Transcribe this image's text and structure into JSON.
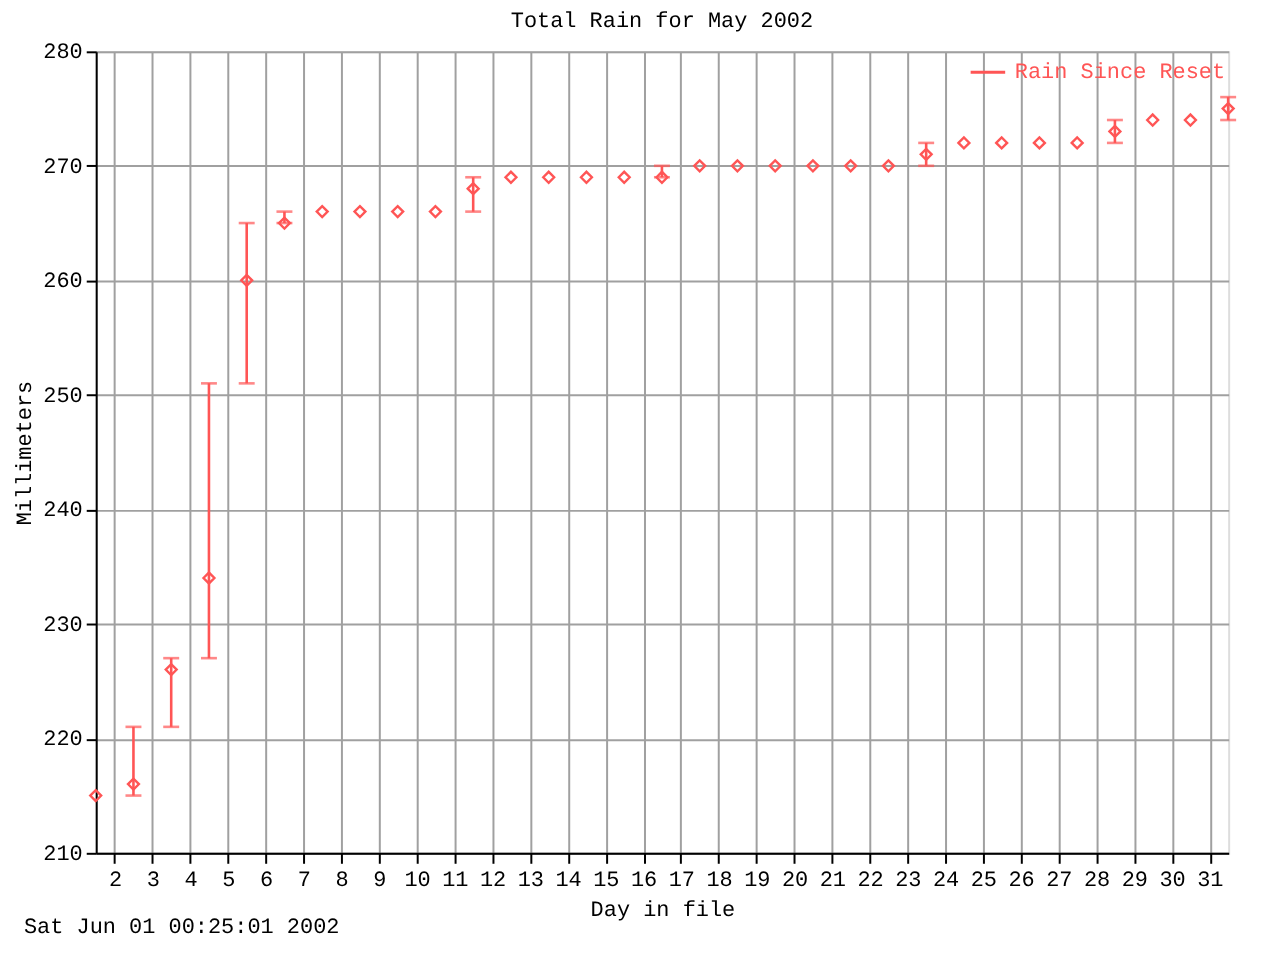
{
  "chart_data": {
    "type": "scatter",
    "title": "Total Rain for May 2002",
    "xlabel": "Day in file",
    "ylabel": "Millimeters",
    "annotations": [
      "Sat Jun 01 00:25:01 2002"
    ],
    "x": [
      1.5,
      2.5,
      3.5,
      4.5,
      5.5,
      6.5,
      7.5,
      8.5,
      9.5,
      10.5,
      11.5,
      12.5,
      13.5,
      14.5,
      15.5,
      16.5,
      17.5,
      18.5,
      19.5,
      20.5,
      21.5,
      22.5,
      23.5,
      24.5,
      25.5,
      26.5,
      27.5,
      28.5,
      29.5,
      30.5,
      31.5
    ],
    "series": [
      {
        "name": "Rain Since Reset",
        "color": "#ff5555",
        "values": [
          215,
          216,
          226,
          234,
          260,
          265,
          266,
          266,
          266,
          266,
          268,
          269,
          269,
          269,
          269,
          269,
          270,
          270,
          270,
          270,
          270,
          270,
          271,
          272,
          272,
          272,
          272,
          273,
          274,
          274,
          275
        ],
        "errors": [
          null,
          [
            215,
            221
          ],
          [
            221,
            227
          ],
          [
            227,
            251
          ],
          [
            251,
            265
          ],
          [
            265,
            266
          ],
          null,
          null,
          null,
          null,
          [
            266,
            269
          ],
          null,
          null,
          null,
          null,
          [
            269,
            270
          ],
          null,
          null,
          null,
          null,
          null,
          null,
          [
            270,
            272
          ],
          null,
          null,
          null,
          null,
          [
            272,
            274
          ],
          null,
          null,
          [
            274,
            276
          ]
        ]
      }
    ],
    "xlim": [
      1.5,
      31.5
    ],
    "ylim": [
      210,
      280
    ],
    "xticks": [
      2,
      3,
      4,
      5,
      6,
      7,
      8,
      9,
      10,
      11,
      12,
      13,
      14,
      15,
      16,
      17,
      18,
      19,
      20,
      21,
      22,
      23,
      24,
      25,
      26,
      27,
      28,
      29,
      30,
      31
    ],
    "yticks": [
      210,
      220,
      230,
      240,
      250,
      260,
      270,
      280
    ],
    "grid": true,
    "legend": "top right",
    "marker": "diamond"
  }
}
